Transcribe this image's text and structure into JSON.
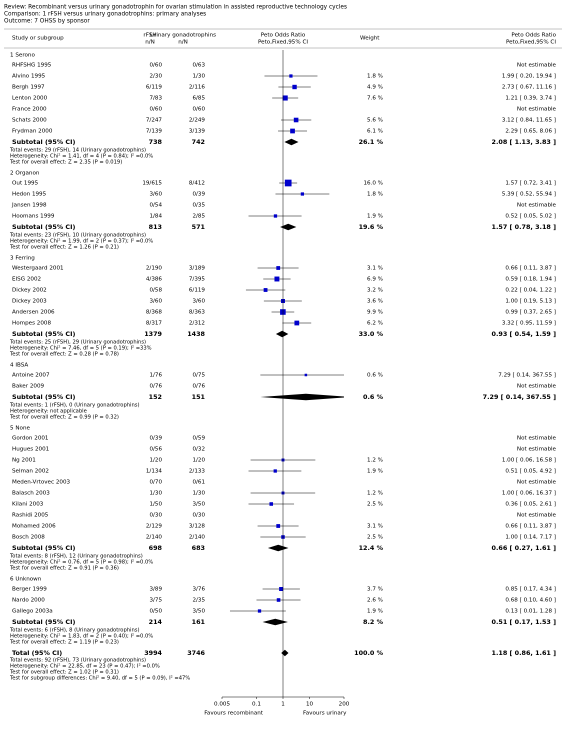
{
  "chart_data": {
    "type": "forest",
    "review": "Review:  Recombinant versus urinary gonadotrophin for ovarian stimulation in assisted reproductive technology cycles",
    "comparison": "Comparison:  1 rFSH versus urinary gonadotrophins: primary analyses",
    "outcome": "Outcome:  7 OHSS by sponsor",
    "columns": {
      "study": "Study or subgroup",
      "exp": "rFSH",
      "exp_sub": "n/N",
      "ctrl": "Urinary gonadotrophins",
      "ctrl_sub": "n/N",
      "plot": "Peto Odds Ratio",
      "plot_sub": "Peto,Fixed,95% CI",
      "weight": "Weight",
      "ci": "Peto Odds Ratio",
      "ci_sub": "Peto,Fixed,95% CI"
    },
    "log_scale": true,
    "xlim": [
      0.005,
      200
    ],
    "xticks": [
      0.005,
      0.1,
      1,
      10,
      200
    ],
    "favours_left": "Favours recombinant",
    "favours_right": "Favours urinary",
    "marker_color": "#0000cc",
    "groups": [
      {
        "name": "1 Serono",
        "studies": [
          {
            "name": "RHFSHG 1995",
            "exp": "0/60",
            "ctrl": "0/63",
            "ci_label": "Not estimable"
          },
          {
            "name": "Alvino 1995",
            "exp": "2/30",
            "ctrl": "1/30",
            "weight": 1.8,
            "weight_label": "1.8 %",
            "or": 1.99,
            "lo": 0.2,
            "hi": 19.94,
            "ci_label": "1.99 [ 0.20, 19.94 ]"
          },
          {
            "name": "Bergh 1997",
            "exp": "6/119",
            "ctrl": "2/116",
            "weight": 4.9,
            "weight_label": "4.9 %",
            "or": 2.73,
            "lo": 0.67,
            "hi": 11.16,
            "ci_label": "2.73 [ 0.67, 11.16 ]"
          },
          {
            "name": "Lenton 2000",
            "exp": "7/83",
            "ctrl": "6/85",
            "weight": 7.6,
            "weight_label": "7.6 %",
            "or": 1.21,
            "lo": 0.39,
            "hi": 3.74,
            "ci_label": "1.21 [ 0.39, 3.74 ]"
          },
          {
            "name": "France 2000",
            "exp": "0/60",
            "ctrl": "0/60",
            "ci_label": "Not estimable"
          },
          {
            "name": "Schats 2000",
            "exp": "7/247",
            "ctrl": "2/249",
            "weight": 5.6,
            "weight_label": "5.6 %",
            "or": 3.12,
            "lo": 0.84,
            "hi": 11.65,
            "ci_label": "3.12 [ 0.84, 11.65 ]"
          },
          {
            "name": "Frydman 2000",
            "exp": "7/139",
            "ctrl": "3/139",
            "weight": 6.1,
            "weight_label": "6.1 %",
            "or": 2.29,
            "lo": 0.65,
            "hi": 8.06,
            "ci_label": "2.29 [ 0.65, 8.06 ]"
          }
        ],
        "subtotal": {
          "label": "Subtotal (95% CI)",
          "exp_total": 738,
          "ctrl_total": 742,
          "weight_label": "26.1 %",
          "or": 2.08,
          "lo": 1.13,
          "hi": 3.83,
          "ci_label": "2.08 [ 1.13, 3.83 ]"
        },
        "notes": [
          "Total events: 29 (rFSH), 14 (Urinary gonadotrophins)",
          "Heterogeneity: Chi² = 1.41, df = 4 (P = 0.84); I² =0.0%",
          "Test for overall effect: Z = 2.35 (P = 0.019)"
        ]
      },
      {
        "name": "2 Organon",
        "studies": [
          {
            "name": "Out 1995",
            "exp": "19/615",
            "ctrl": "8/412",
            "weight": 16.0,
            "weight_label": "16.0 %",
            "or": 1.57,
            "lo": 0.72,
            "hi": 3.41,
            "ci_label": "1.57 [ 0.72, 3.41 ]"
          },
          {
            "name": "Hedon 1995",
            "exp": "3/60",
            "ctrl": "0/39",
            "weight": 1.8,
            "weight_label": "1.8 %",
            "or": 5.39,
            "lo": 0.52,
            "hi": 55.94,
            "ci_label": "5.39 [ 0.52, 55.94 ]"
          },
          {
            "name": "Jansen 1998",
            "exp": "0/54",
            "ctrl": "0/35",
            "ci_label": "Not estimable"
          },
          {
            "name": "Hoomans 1999",
            "exp": "1/84",
            "ctrl": "2/85",
            "weight": 1.9,
            "weight_label": "1.9 %",
            "or": 0.52,
            "lo": 0.05,
            "hi": 5.02,
            "ci_label": "0.52 [ 0.05, 5.02 ]"
          }
        ],
        "subtotal": {
          "label": "Subtotal (95% CI)",
          "exp_total": 813,
          "ctrl_total": 571,
          "weight_label": "19.6 %",
          "or": 1.57,
          "lo": 0.78,
          "hi": 3.18,
          "ci_label": "1.57 [ 0.78, 3.18 ]"
        },
        "notes": [
          "Total events: 23 (rFSH), 10 (Urinary gonadotrophins)",
          "Heterogeneity: Chi² = 1.99, df = 2 (P = 0.37); I² =0.0%",
          "Test for overall effect: Z = 1.26 (P = 0.21)"
        ]
      },
      {
        "name": "3 Ferring",
        "studies": [
          {
            "name": "Westergaard 2001",
            "exp": "2/190",
            "ctrl": "3/189",
            "weight": 3.1,
            "weight_label": "3.1 %",
            "or": 0.66,
            "lo": 0.11,
            "hi": 3.87,
            "ci_label": "0.66 [ 0.11, 3.87 ]"
          },
          {
            "name": "EISG 2002",
            "exp": "4/386",
            "ctrl": "7/395",
            "weight": 6.9,
            "weight_label": "6.9 %",
            "or": 0.59,
            "lo": 0.18,
            "hi": 1.94,
            "ci_label": "0.59 [ 0.18, 1.94 ]"
          },
          {
            "name": "Dickey 2002",
            "exp": "0/58",
            "ctrl": "6/119",
            "weight": 3.2,
            "weight_label": "3.2 %",
            "or": 0.22,
            "lo": 0.04,
            "hi": 1.22,
            "ci_label": "0.22 [ 0.04, 1.22 ]"
          },
          {
            "name": "Dickey 2003",
            "exp": "3/60",
            "ctrl": "3/60",
            "weight": 3.6,
            "weight_label": "3.6 %",
            "or": 1.0,
            "lo": 0.19,
            "hi": 5.13,
            "ci_label": "1.00 [ 0.19, 5.13 ]"
          },
          {
            "name": "Andersen 2006",
            "exp": "8/368",
            "ctrl": "8/363",
            "weight": 9.9,
            "weight_label": "9.9 %",
            "or": 0.99,
            "lo": 0.37,
            "hi": 2.65,
            "ci_label": "0.99 [ 0.37, 2.65 ]"
          },
          {
            "name": "Hompes 2008",
            "exp": "8/317",
            "ctrl": "2/312",
            "weight": 6.2,
            "weight_label": "6.2 %",
            "or": 3.32,
            "lo": 0.95,
            "hi": 11.59,
            "ci_label": "3.32 [ 0.95, 11.59 ]"
          }
        ],
        "subtotal": {
          "label": "Subtotal (95% CI)",
          "exp_total": 1379,
          "ctrl_total": 1438,
          "weight_label": "33.0 %",
          "or": 0.93,
          "lo": 0.54,
          "hi": 1.59,
          "ci_label": "0.93 [ 0.54, 1.59 ]"
        },
        "notes": [
          "Total events: 25 (rFSH), 29 (Urinary gonadotrophins)",
          "Heterogeneity: Chi² = 7.46, df = 5 (P = 0.19); I² =33%",
          "Test for overall effect: Z = 0.28 (P = 0.78)"
        ]
      },
      {
        "name": "4 IBSA",
        "studies": [
          {
            "name": "Antoine 2007",
            "exp": "1/76",
            "ctrl": "0/75",
            "weight": 0.6,
            "weight_label": "0.6 %",
            "or": 7.29,
            "lo": 0.14,
            "hi": 367.55,
            "ci_label": "7.29 [ 0.14, 367.55 ]"
          },
          {
            "name": "Baker 2009",
            "exp": "0/76",
            "ctrl": "0/76",
            "ci_label": "Not estimable"
          }
        ],
        "subtotal": {
          "label": "Subtotal (95% CI)",
          "exp_total": 152,
          "ctrl_total": 151,
          "weight_label": "0.6 %",
          "or": 7.29,
          "lo": 0.14,
          "hi": 367.55,
          "ci_label": "7.29 [ 0.14, 367.55 ]"
        },
        "notes": [
          "Total events: 1 (rFSH), 0 (Urinary gonadotrophins)",
          "Heterogeneity: not applicable",
          "Test for overall effect: Z = 0.99 (P = 0.32)"
        ]
      },
      {
        "name": "5 None",
        "studies": [
          {
            "name": "Gordon 2001",
            "exp": "0/39",
            "ctrl": "0/59",
            "ci_label": "Not estimable"
          },
          {
            "name": "Hugues 2001",
            "exp": "0/56",
            "ctrl": "0/32",
            "ci_label": "Not estimable"
          },
          {
            "name": "Ng 2001",
            "exp": "1/20",
            "ctrl": "1/20",
            "weight": 1.2,
            "weight_label": "1.2 %",
            "or": 1.0,
            "lo": 0.06,
            "hi": 16.58,
            "ci_label": "1.00 [ 0.06, 16.58 ]"
          },
          {
            "name": "Selman 2002",
            "exp": "1/134",
            "ctrl": "2/133",
            "weight": 1.9,
            "weight_label": "1.9 %",
            "or": 0.51,
            "lo": 0.05,
            "hi": 4.92,
            "ci_label": "0.51 [ 0.05, 4.92 ]"
          },
          {
            "name": "Meden-Vrtovec 2003",
            "exp": "0/70",
            "ctrl": "0/61",
            "ci_label": "Not estimable"
          },
          {
            "name": "Balasch 2003",
            "exp": "1/30",
            "ctrl": "1/30",
            "weight": 1.2,
            "weight_label": "1.2 %",
            "or": 1.0,
            "lo": 0.06,
            "hi": 16.37,
            "ci_label": "1.00 [ 0.06, 16.37 ]"
          },
          {
            "name": "Kilani 2003",
            "exp": "1/50",
            "ctrl": "3/50",
            "weight": 2.5,
            "weight_label": "2.5 %",
            "or": 0.36,
            "lo": 0.05,
            "hi": 2.61,
            "ci_label": "0.36 [ 0.05, 2.61 ]"
          },
          {
            "name": "Rashidi 2005",
            "exp": "0/30",
            "ctrl": "0/30",
            "ci_label": "Not estimable"
          },
          {
            "name": "Mohamed 2006",
            "exp": "2/129",
            "ctrl": "3/128",
            "weight": 3.1,
            "weight_label": "3.1 %",
            "or": 0.66,
            "lo": 0.11,
            "hi": 3.87,
            "ci_label": "0.66 [ 0.11, 3.87 ]"
          },
          {
            "name": "Bosch 2008",
            "exp": "2/140",
            "ctrl": "2/140",
            "weight": 2.5,
            "weight_label": "2.5 %",
            "or": 1.0,
            "lo": 0.14,
            "hi": 7.17,
            "ci_label": "1.00 [ 0.14, 7.17 ]"
          }
        ],
        "subtotal": {
          "label": "Subtotal (95% CI)",
          "exp_total": 698,
          "ctrl_total": 683,
          "weight_label": "12.4 %",
          "or": 0.66,
          "lo": 0.27,
          "hi": 1.61,
          "ci_label": "0.66 [ 0.27, 1.61 ]"
        },
        "notes": [
          "Total events: 8 (rFSH), 12 (Urinary gonadotrophins)",
          "Heterogeneity: Chi² = 0.76, df = 5 (P = 0.98); I² =0.0%",
          "Test for overall effect: Z = 0.91 (P = 0.36)"
        ]
      },
      {
        "name": "6 Unknown",
        "studies": [
          {
            "name": "Berger 1999",
            "exp": "3/89",
            "ctrl": "3/76",
            "weight": 3.7,
            "weight_label": "3.7 %",
            "or": 0.85,
            "lo": 0.17,
            "hi": 4.34,
            "ci_label": "0.85 [ 0.17, 4.34 ]"
          },
          {
            "name": "Nardo 2000",
            "exp": "3/75",
            "ctrl": "2/35",
            "weight": 2.6,
            "weight_label": "2.6 %",
            "or": 0.68,
            "lo": 0.1,
            "hi": 4.6,
            "ci_label": "0.68 [ 0.10, 4.60 ]"
          },
          {
            "name": "Gallego 2003a",
            "exp": "0/50",
            "ctrl": "3/50",
            "weight": 1.9,
            "weight_label": "1.9 %",
            "or": 0.13,
            "lo": 0.01,
            "hi": 1.28,
            "ci_label": "0.13 [ 0.01, 1.28 ]"
          }
        ],
        "subtotal": {
          "label": "Subtotal (95% CI)",
          "exp_total": 214,
          "ctrl_total": 161,
          "weight_label": "8.2 %",
          "or": 0.51,
          "lo": 0.17,
          "hi": 1.53,
          "ci_label": "0.51 [ 0.17, 1.53 ]"
        },
        "notes": [
          "Total events: 6 (rFSH), 8 (Urinary gonadotrophins)",
          "Heterogeneity: Chi² = 1.83, df = 2 (P = 0.40); I² =0.0%",
          "Test for overall effect: Z = 1.19 (P = 0.23)"
        ]
      }
    ],
    "total": {
      "label": "Total (95% CI)",
      "exp_total": 3994,
      "ctrl_total": 3746,
      "weight_label": "100.0 %",
      "or": 1.18,
      "lo": 0.86,
      "hi": 1.61,
      "ci_label": "1.18 [ 0.86, 1.61 ]",
      "notes": [
        "Total events: 92 (rFSH), 73 (Urinary gonadotrophins)",
        "Heterogeneity: Chi² = 22.85, df = 23 (P = 0.47); I² =0.0%",
        "Test for overall effect: Z = 1.02 (P = 0.31)",
        "Test for subgroup differences: Chi² = 9.40, df = 5 (P = 0.09), I² =47%"
      ]
    }
  }
}
